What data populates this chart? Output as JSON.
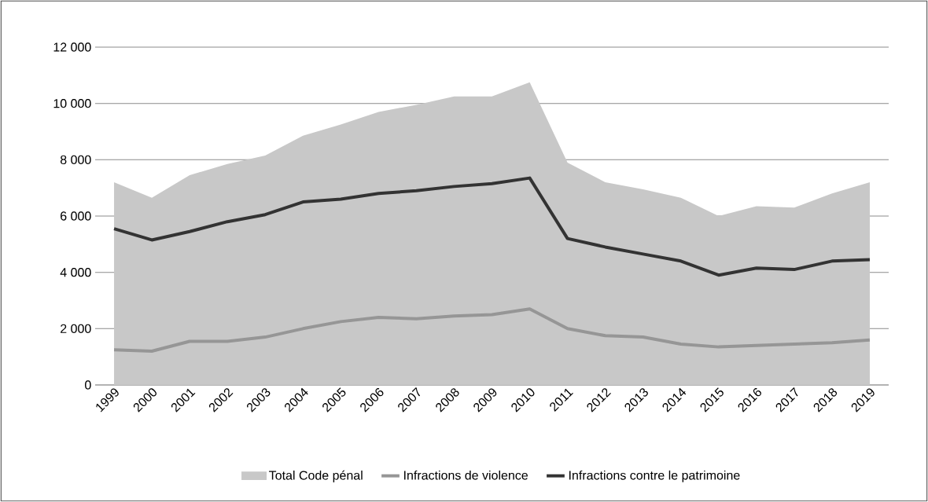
{
  "chart_data": {
    "type": "area",
    "categories": [
      "1999",
      "2000",
      "2001",
      "2002",
      "2003",
      "2004",
      "2005",
      "2006",
      "2007",
      "2008",
      "2009",
      "2010",
      "2011",
      "2012",
      "2013",
      "2014",
      "2015",
      "2016",
      "2017",
      "2018",
      "2019"
    ],
    "series": [
      {
        "name": "Total Code pénal",
        "color": "#c8c8c8",
        "values": [
          7200,
          6650,
          7450,
          7850,
          8150,
          8850,
          9250,
          9700,
          9950,
          10250,
          10250,
          10750,
          7900,
          7200,
          6950,
          6650,
          6000,
          6350,
          6300,
          6800,
          7200
        ]
      },
      {
        "name": "Infractions de violence",
        "type": "line",
        "color": "#969696",
        "values": [
          1250,
          1200,
          1550,
          1550,
          1700,
          2000,
          2250,
          2400,
          2350,
          2450,
          2500,
          2700,
          2000,
          1750,
          1700,
          1450,
          1350,
          1400,
          1450,
          1500,
          1600
        ]
      },
      {
        "name": "Infractions contre le patrimoine",
        "type": "line",
        "color": "#333333",
        "values": [
          5550,
          5150,
          5450,
          5800,
          6050,
          6500,
          6600,
          6800,
          6900,
          7050,
          7150,
          7350,
          5200,
          4900,
          4650,
          4400,
          3900,
          4150,
          4100,
          4400,
          4450
        ]
      }
    ],
    "ylim": [
      0,
      12000
    ],
    "yticks": [
      0,
      {
        "value": 2000,
        "label": "2 000"
      },
      {
        "value": 4000,
        "label": "4 000"
      },
      {
        "value": 6000,
        "label": "6 000"
      },
      {
        "value": 8000,
        "label": "8 000"
      },
      {
        "value": 10000,
        "label": "10 000"
      },
      {
        "value": 12000,
        "label": "12 000"
      }
    ],
    "grid": "y",
    "legend": "bottom"
  }
}
